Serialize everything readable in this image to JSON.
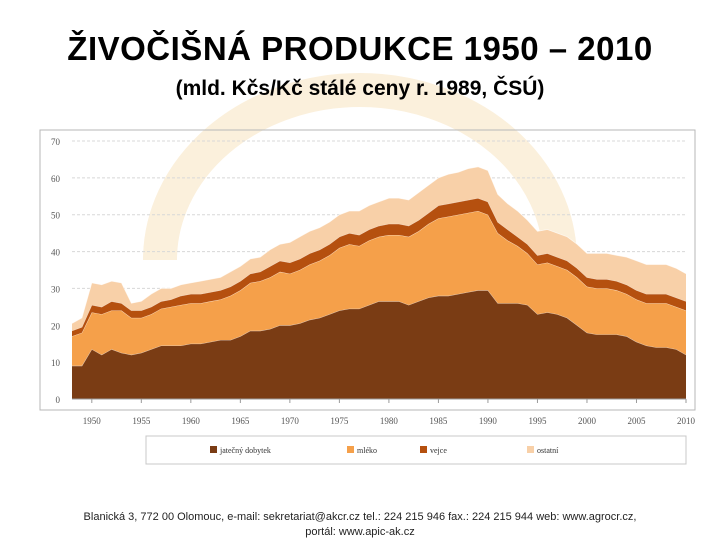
{
  "slide": {
    "title": "ŽIVOČIŠNÁ  PRODUKCE  1950 – 2010",
    "subtitle": "(mld. Kčs/Kč stálé ceny r. 1989, ČSÚ)",
    "footer_line1": "Blanická 3, 772 00 Olomouc, e-mail: sekretariat@akcr.cz tel.: 224 215 946 fax.: 224 215 944 web: www.agrocr.cz,",
    "footer_line2": "portál: www.apic-ak.cz"
  },
  "colors": {
    "jatecny": "#7a3c14",
    "mleko": "#f5a04a",
    "vejce": "#b5500f",
    "ostatni": "#f8d0a8",
    "frame": "#b7b7b7",
    "watermark": "#fbf0dc"
  },
  "chart_data": {
    "type": "area",
    "stacked": true,
    "title": "",
    "xlabel": "",
    "ylabel": "",
    "xlim": [
      1948,
      2010
    ],
    "ylim": [
      0,
      70
    ],
    "yticks": [
      "0",
      "10",
      "20",
      "30",
      "40",
      "50",
      "60",
      "70"
    ],
    "xticks": [
      "1950",
      "1955",
      "1960",
      "1965",
      "1970",
      "1975",
      "1980",
      "1985",
      "1990",
      "1995",
      "2000",
      "2005",
      "2010"
    ],
    "grid": true,
    "legend_position": "bottom",
    "x": [
      1948,
      1949,
      1950,
      1951,
      1952,
      1953,
      1954,
      1955,
      1956,
      1957,
      1958,
      1959,
      1960,
      1961,
      1962,
      1963,
      1964,
      1965,
      1966,
      1967,
      1968,
      1969,
      1970,
      1971,
      1972,
      1973,
      1974,
      1975,
      1976,
      1977,
      1978,
      1979,
      1980,
      1981,
      1982,
      1983,
      1984,
      1985,
      1986,
      1987,
      1988,
      1989,
      1990,
      1991,
      1992,
      1993,
      1994,
      1995,
      1996,
      1997,
      1998,
      1999,
      2000,
      2001,
      2002,
      2003,
      2004,
      2005,
      2006,
      2007,
      2008,
      2009,
      2010
    ],
    "series": [
      {
        "name": "jatečný dobytek",
        "color_key": "jatecny",
        "values": [
          9,
          9,
          13.5,
          12,
          13.5,
          12.5,
          12,
          12.5,
          13.5,
          14.5,
          14.5,
          14.5,
          15,
          15,
          15.5,
          16,
          16,
          17,
          18.5,
          18.5,
          19,
          20,
          20,
          20.5,
          21.5,
          22,
          23,
          24,
          24.5,
          24.5,
          25.5,
          26.5,
          26.5,
          26.5,
          25.5,
          26.5,
          27.5,
          28,
          28,
          28.5,
          29,
          29.5,
          29.5,
          26,
          26,
          26,
          25.5,
          23,
          23.5,
          23,
          22,
          20,
          18,
          17.5,
          17.5,
          17.5,
          17,
          15.5,
          14.5,
          14,
          14,
          13.5,
          12
        ]
      },
      {
        "name": "mléko",
        "color_key": "mleko",
        "values": [
          8,
          9,
          10,
          11,
          10.5,
          11.5,
          10,
          9.5,
          9.5,
          10,
          10.5,
          11,
          11,
          11,
          11,
          11,
          12,
          12.5,
          13,
          13.5,
          14,
          14.5,
          14,
          14.5,
          15,
          15.5,
          16,
          17,
          17.5,
          17,
          17.5,
          17.5,
          18,
          18,
          18.5,
          19,
          20,
          21,
          21.5,
          21.5,
          21.5,
          21.5,
          20.5,
          19,
          17,
          15.5,
          14,
          13.5,
          13.5,
          13,
          13,
          13,
          12.5,
          12.5,
          12.5,
          12,
          11.5,
          11.5,
          11.5,
          12,
          12,
          11.5,
          12
        ]
      },
      {
        "name": "vejce",
        "color_key": "vejce",
        "values": [
          1.5,
          1.5,
          2,
          2,
          2.5,
          2,
          2,
          2,
          2,
          2,
          2,
          2.5,
          2.5,
          2.5,
          2.5,
          2.5,
          2.5,
          2.5,
          2.5,
          2.5,
          3,
          3,
          3,
          3,
          3,
          3,
          3,
          3,
          3,
          3,
          3,
          3,
          3,
          3,
          3,
          3,
          3,
          3.5,
          3.5,
          3.5,
          3.5,
          3.5,
          3.5,
          3,
          3,
          2.5,
          2.5,
          2.5,
          2.5,
          2.5,
          2.5,
          2.5,
          2.5,
          2.5,
          2.5,
          2.5,
          2.5,
          2.5,
          2.5,
          2.5,
          2.5,
          2.5,
          2.5
        ]
      },
      {
        "name": "ostatní",
        "color_key": "ostatni",
        "values": [
          2,
          2.5,
          6,
          6,
          5.5,
          5.5,
          2,
          2.5,
          3.5,
          3.5,
          3,
          3,
          3,
          3.5,
          3.5,
          3.5,
          4,
          4,
          4,
          4,
          4.5,
          4.5,
          5.5,
          6,
          6,
          6,
          6,
          6,
          6,
          6.5,
          6.5,
          6.5,
          7,
          7,
          7,
          7.5,
          7.5,
          7.5,
          8,
          8,
          8.5,
          8.5,
          8.5,
          7.5,
          7,
          7,
          6.5,
          6.5,
          6.5,
          6.5,
          6.5,
          6.5,
          6.5,
          7,
          7,
          7,
          7.5,
          8,
          8,
          8,
          8,
          8,
          7.5
        ]
      }
    ]
  }
}
